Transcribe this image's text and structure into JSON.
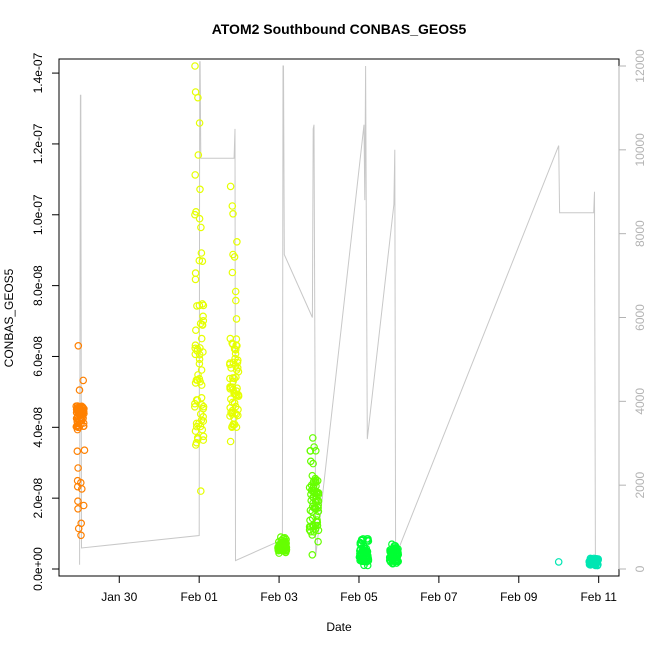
{
  "chart_data": {
    "type": "scatter",
    "title": "ATOM2 Southbound CONBAS_GEOS5",
    "xlabel": "Date",
    "ylabel": "CONBAS_GEOS5",
    "x_ticks": [
      "Jan 30",
      "Feb 01",
      "Feb 03",
      "Feb 05",
      "Feb 07",
      "Feb 09",
      "Feb 11"
    ],
    "y_ticks": [
      "0.0e+00",
      "2.0e-08",
      "4.0e-08",
      "6.0e-08",
      "8.0e-08",
      "1.0e-07",
      "1.2e-07",
      "1.4e-07"
    ],
    "y2_ticks": [
      "0",
      "2000",
      "4000",
      "6000",
      "8000",
      "10000",
      "12000"
    ],
    "xlim": [
      "2017-01-28T16:00",
      "2017-02-11T08:00"
    ],
    "ylim": [
      0,
      1.42e-07
    ],
    "y2lim": [
      0,
      12000
    ],
    "colors": {
      "orange": "#ff8000",
      "yellow": "#e6ff00",
      "lime": "#66ff00",
      "green": "#00ff33",
      "teal": "#00e6b3",
      "altitude_line": "#c8c8c8"
    },
    "series": [
      {
        "color": "orange",
        "x": "2017-01-29T00:30",
        "ymin": 9.5e-09,
        "ymax": 6.3e-08,
        "dense_min": 4e-08,
        "dense_max": 4.6e-08
      },
      {
        "color": "yellow",
        "x": "2017-02-01T00:00",
        "ymin": 2.2e-08,
        "ymax": 1.42e-07,
        "dense_min": 3.5e-08,
        "dense_max": 7.5e-08
      },
      {
        "color": "yellow",
        "x": "2017-02-01T21:00",
        "ymin": 3.6e-08,
        "ymax": 1.08e-07,
        "dense_min": 4e-08,
        "dense_max": 6.5e-08
      },
      {
        "color": "lime",
        "x": "2017-02-03T02:00",
        "ymin": 4.5e-09,
        "ymax": 9e-09,
        "dense_min": 5e-09,
        "dense_max": 8e-09
      },
      {
        "color": "lime",
        "x": "2017-02-03T21:00",
        "ymin": 4e-09,
        "ymax": 3.7e-08,
        "dense_min": 1e-08,
        "dense_max": 2.5e-08
      },
      {
        "color": "green",
        "x": "2017-02-05T03:00",
        "ymin": 1e-09,
        "ymax": 8.5e-09,
        "dense_min": 2e-09,
        "dense_max": 6e-09
      },
      {
        "color": "green",
        "x": "2017-02-05T21:00",
        "ymin": 1.5e-09,
        "ymax": 7e-09,
        "dense_min": 2e-09,
        "dense_max": 6e-09
      },
      {
        "color": "teal",
        "x": "2017-02-10T00:00",
        "ymin": 2e-09,
        "ymax": 2e-09,
        "dense_min": 2e-09,
        "dense_max": 2e-09
      },
      {
        "color": "teal",
        "x": "2017-02-10T21:00",
        "ymin": 1e-09,
        "ymax": 3e-09,
        "dense_min": 1e-09,
        "dense_max": 3e-09
      }
    ],
    "altitude_track": [
      [
        "2017-01-29T00:10",
        100
      ],
      [
        "2017-01-29T00:40",
        11300
      ],
      [
        "2017-01-29T00:55",
        11300
      ],
      [
        "2017-01-29T01:20",
        500
      ],
      [
        "2017-02-01T00:00",
        800
      ],
      [
        "2017-02-01T00:20",
        12100
      ],
      [
        "2017-02-01T00:35",
        12100
      ],
      [
        "2017-02-01T01:00",
        9800
      ],
      [
        "2017-02-01T21:00",
        9800
      ],
      [
        "2017-02-01T21:30",
        10500
      ],
      [
        "2017-02-01T21:50",
        200
      ],
      [
        "2017-02-03T02:00",
        700
      ],
      [
        "2017-02-03T02:20",
        12000
      ],
      [
        "2017-02-03T02:40",
        12000
      ],
      [
        "2017-02-03T03:10",
        7500
      ],
      [
        "2017-02-03T20:00",
        6000
      ],
      [
        "2017-02-03T20:30",
        10500
      ],
      [
        "2017-02-03T21:00",
        10600
      ],
      [
        "2017-02-03T22:00",
        300
      ],
      [
        "2017-02-05T03:00",
        10600
      ],
      [
        "2017-02-05T03:30",
        8800
      ],
      [
        "2017-02-05T04:00",
        12000
      ],
      [
        "2017-02-05T05:00",
        3100
      ],
      [
        "2017-02-05T21:00",
        8700
      ],
      [
        "2017-02-05T21:30",
        10000
      ],
      [
        "2017-02-05T22:00",
        300
      ],
      [
        "2017-02-10T00:00",
        10100
      ],
      [
        "2017-02-10T00:30",
        8500
      ],
      [
        "2017-02-10T21:00",
        8500
      ],
      [
        "2017-02-10T21:30",
        9000
      ],
      [
        "2017-02-10T22:00",
        200
      ]
    ]
  }
}
